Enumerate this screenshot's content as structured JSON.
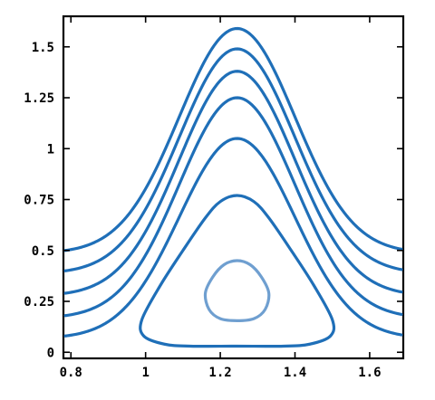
{
  "chart_data": {
    "type": "contour",
    "title": "",
    "xlabel": "",
    "ylabel": "",
    "xlim": [
      0.78,
      1.69
    ],
    "ylim": [
      -0.03,
      1.65
    ],
    "x_ticks": [
      {
        "value": 0.8,
        "label": "0.8"
      },
      {
        "value": 1.0,
        "label": "1"
      },
      {
        "value": 1.2,
        "label": "1.2"
      },
      {
        "value": 1.4,
        "label": "1.4"
      },
      {
        "value": 1.6,
        "label": "1.6"
      }
    ],
    "y_ticks": [
      {
        "value": 0.0,
        "label": "0"
      },
      {
        "value": 0.25,
        "label": "0.25"
      },
      {
        "value": 0.5,
        "label": "0.5"
      },
      {
        "value": 0.75,
        "label": "0.75"
      },
      {
        "value": 1.0,
        "label": "1"
      },
      {
        "value": 1.25,
        "label": "1.25"
      },
      {
        "value": 1.5,
        "label": "1.5"
      }
    ],
    "grid": false,
    "colors": {
      "outer": "#1f6fb8",
      "inner": "#6f9fd0"
    },
    "open_contours": [
      {
        "left": [
          0.785,
          0.5
        ],
        "peak": [
          1.245,
          1.59
        ],
        "right": [
          1.685,
          0.5
        ],
        "color": "outer"
      },
      {
        "left": [
          0.785,
          0.4
        ],
        "peak": [
          1.245,
          1.49
        ],
        "right": [
          1.685,
          0.4
        ],
        "color": "outer"
      },
      {
        "left": [
          0.785,
          0.29
        ],
        "peak": [
          1.245,
          1.38
        ],
        "right": [
          1.685,
          0.29
        ],
        "color": "outer"
      },
      {
        "left": [
          0.785,
          0.18
        ],
        "peak": [
          1.245,
          1.25
        ],
        "right": [
          1.685,
          0.18
        ],
        "color": "outer"
      },
      {
        "left": [
          0.785,
          0.08
        ],
        "peak": [
          1.245,
          1.05
        ],
        "right": [
          1.685,
          0.08
        ],
        "color": "outer"
      }
    ],
    "closed_contours": [
      {
        "color": "outer",
        "points": [
          [
            1.245,
            0.77
          ],
          [
            1.2,
            0.74
          ],
          [
            1.16,
            0.66
          ],
          [
            1.1,
            0.5
          ],
          [
            1.04,
            0.33
          ],
          [
            0.99,
            0.16
          ],
          [
            0.995,
            0.08
          ],
          [
            1.05,
            0.04
          ],
          [
            1.12,
            0.03
          ],
          [
            1.245,
            0.03
          ],
          [
            1.37,
            0.03
          ],
          [
            1.44,
            0.04
          ],
          [
            1.495,
            0.08
          ],
          [
            1.5,
            0.16
          ],
          [
            1.45,
            0.33
          ],
          [
            1.39,
            0.5
          ],
          [
            1.33,
            0.66
          ],
          [
            1.29,
            0.74
          ]
        ]
      },
      {
        "color": "inner",
        "points": [
          [
            1.245,
            0.45
          ],
          [
            1.21,
            0.43
          ],
          [
            1.18,
            0.37
          ],
          [
            1.16,
            0.29
          ],
          [
            1.17,
            0.21
          ],
          [
            1.2,
            0.165
          ],
          [
            1.245,
            0.155
          ],
          [
            1.29,
            0.165
          ],
          [
            1.32,
            0.21
          ],
          [
            1.33,
            0.29
          ],
          [
            1.31,
            0.37
          ],
          [
            1.28,
            0.43
          ]
        ]
      }
    ]
  }
}
